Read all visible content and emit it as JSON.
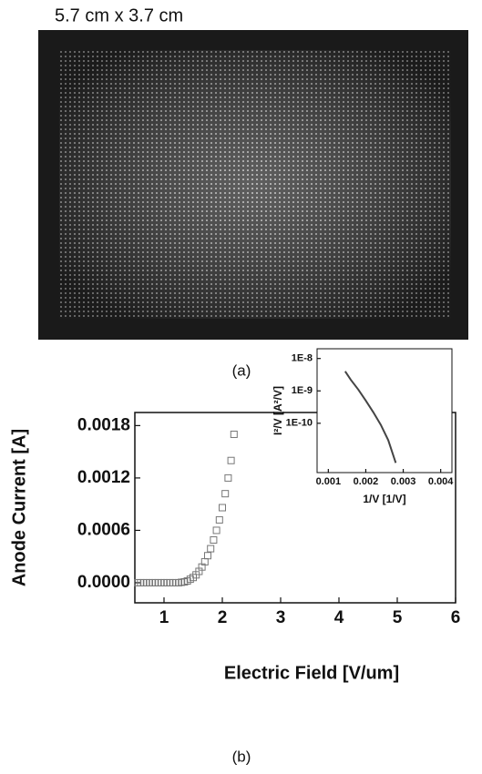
{
  "figure_a": {
    "size_caption": "5.7 cm x 3.7 cm",
    "label": "(a)"
  },
  "figure_b": {
    "label": "(b)"
  },
  "chart_data": [
    {
      "type": "scatter",
      "xlabel": "Electric Field [V/um]",
      "ylabel": "Anode Current [A]",
      "x": [
        0.55,
        0.6,
        0.65,
        0.7,
        0.75,
        0.8,
        0.85,
        0.9,
        0.95,
        1.0,
        1.05,
        1.1,
        1.15,
        1.2,
        1.25,
        1.3,
        1.35,
        1.4,
        1.45,
        1.5,
        1.55,
        1.6,
        1.65,
        1.7,
        1.75,
        1.8,
        1.85,
        1.9,
        1.95,
        2.0,
        2.05,
        2.1,
        2.15,
        2.2
      ],
      "values": [
        0,
        0,
        0,
        0,
        0,
        0,
        0,
        0,
        0,
        0,
        0,
        0,
        0,
        0,
        0,
        5e-06,
        1e-05,
        2e-05,
        4e-05,
        6e-05,
        9e-05,
        0.00013,
        0.00018,
        0.00024,
        0.00031,
        0.00039,
        0.00049,
        0.0006,
        0.00072,
        0.00086,
        0.00102,
        0.0012,
        0.0014,
        0.0017
      ],
      "color": "#777777",
      "marker": "square",
      "xlim": [
        0.5,
        6
      ],
      "xticks": [
        1,
        2,
        3,
        4,
        5,
        6
      ],
      "ylim": [
        -0.00023,
        0.00195
      ],
      "yticks": [
        {
          "value": 0,
          "label": "0.0000"
        },
        {
          "value": 0.0006,
          "label": "0.0006"
        },
        {
          "value": 0.0012,
          "label": "0.0012"
        },
        {
          "value": 0.0018,
          "label": "0.0018"
        }
      ]
    },
    {
      "type": "line",
      "xlabel": "1/V  [1/V]",
      "ylabel": "I²/V [A²/V]",
      "x": [
        0.00145,
        0.0016,
        0.0018,
        0.002,
        0.0022,
        0.0024,
        0.0026,
        0.0028
      ],
      "values": [
        4e-09,
        2.2e-09,
        1.1e-09,
        5e-10,
        2.2e-10,
        9e-11,
        3e-11,
        6e-12
      ],
      "color": "#444444",
      "log_y": true,
      "xlim": [
        0.0007,
        0.0043
      ],
      "xticks": [
        0.001,
        0.002,
        0.003,
        0.004
      ],
      "ylim": [
        3e-12,
        2e-08
      ],
      "yticks": [
        {
          "value": 1e-08,
          "label": "1E-8"
        },
        {
          "value": 1e-09,
          "label": "1E-9"
        },
        {
          "value": 1e-10,
          "label": "1E-10"
        }
      ]
    }
  ]
}
